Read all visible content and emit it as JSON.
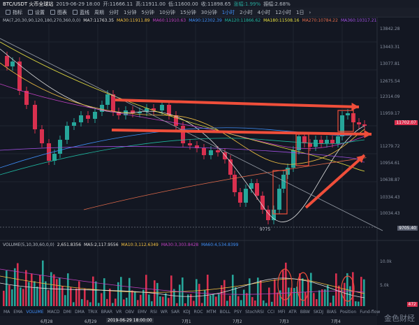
{
  "header": {
    "pair": "BTC/USDT 火币全球站",
    "date_label": "2019-06-29 18:00",
    "open": "开:11666.11",
    "high": "高:11911.00",
    "low": "低:11600.00",
    "close": "收:11898.65",
    "change": "涨幅:1.99%",
    "amplitude": "振幅:2.68%"
  },
  "toolbar": {
    "tools": [
      {
        "label": "指标",
        "icon": "indicator-icon"
      },
      {
        "label": "设置",
        "icon": "gear-icon"
      },
      {
        "label": "图表",
        "icon": "chart-icon"
      },
      {
        "label": "蓝线",
        "icon": "line-icon"
      }
    ],
    "periods": [
      "周期",
      "分时",
      "1分钟",
      "5分钟",
      "10分钟",
      "15分钟",
      "30分钟",
      "1小时",
      "2小时",
      "4小时",
      "12小时",
      "1日"
    ],
    "active_period": "1小时"
  },
  "ma_line": {
    "params": "MA(7,20,30,90,120,180,270,360,0,0)",
    "items": [
      {
        "label": "MA7:11763.35",
        "color": "#e0e0e0"
      },
      {
        "label": "MA30:11911.89",
        "color": "#f5c242"
      },
      {
        "label": "MA60:11910.63",
        "color": "#c040c0"
      },
      {
        "label": "MA90:12302.39",
        "color": "#3e8ef7"
      },
      {
        "label": "MA120:11866.62",
        "color": "#1fb8a0"
      },
      {
        "label": "MA180:11508.16",
        "color": "#e8e040"
      },
      {
        "label": "MA270:10784.22",
        "color": "#e06a4a"
      },
      {
        "label": "MA360:10317.21",
        "color": "#a050e0"
      }
    ]
  },
  "price_axis": [
    "13842.28",
    "13443.31",
    "13077.81",
    "12675.54",
    "12314.09",
    "11959.17",
    "11279.72",
    "10954.61",
    "10638.87",
    "10334.43",
    "10034.43"
  ],
  "price_tags": {
    "current": "11702.07",
    "low": "9705.40"
  },
  "low_marker": "9775",
  "volume": {
    "params": "VOLUME(5,10,30,60,0,0)",
    "items": [
      {
        "label": "2,651.8356",
        "color": "#e0e0e0"
      },
      {
        "label": "MA5:2,117.9556",
        "color": "#e0e0e0"
      },
      {
        "label": "MA10:3,112.6349",
        "color": "#f5c242"
      },
      {
        "label": "MA30:3,303.8428",
        "color": "#c040c0"
      },
      {
        "label": "MA60:4,534.8399",
        "color": "#3e8ef7"
      }
    ],
    "axis": [
      "10.0k",
      "5.0k"
    ],
    "tag": "472"
  },
  "indicators": [
    "MA",
    "EMA",
    "VOLUME",
    "MACD",
    "DMI",
    "DMA",
    "TRIX",
    "BRAR",
    "VR",
    "OBV",
    "EMV",
    "RSI",
    "WR",
    "SAR",
    "KDJ",
    "ROC",
    "MTM",
    "BOLL",
    "PSY",
    "StochRSI",
    "CCI",
    "MFI",
    "ATR",
    "BBW",
    "SKDJ",
    "BIAS",
    "Position",
    "Fund-flow"
  ],
  "active_indicator": "VOLUME",
  "dates": [
    "6月28",
    "6月29",
    "2019-06-29 18:00:00",
    "7月1",
    "7月2",
    "7月3",
    "7月4"
  ],
  "watermark": "金色财经",
  "colors": {
    "up": "#26a69a",
    "down": "#d9304f",
    "arrow": "#ef4e3a"
  }
}
